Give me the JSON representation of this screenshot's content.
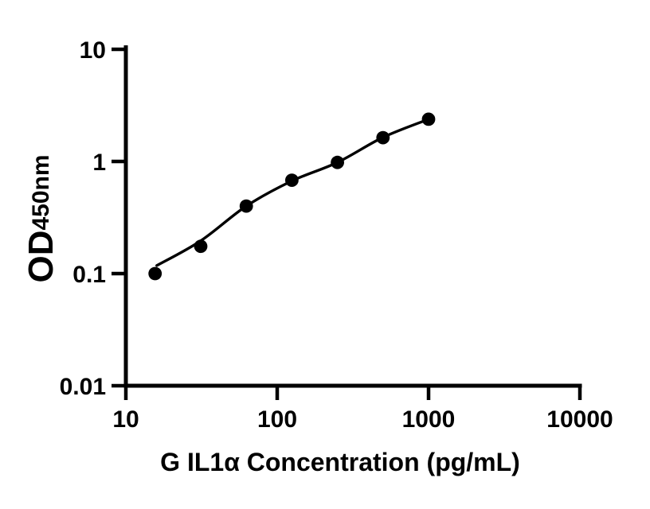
{
  "figure": {
    "background": "#ffffff",
    "axis_color": "#000000",
    "marker_color": "#000000"
  },
  "chart_data": {
    "type": "scatter",
    "title": "",
    "xlabel": "G IL1α Concentration (pg/mL)",
    "ylabel": "OD",
    "ylabel_subscript": "450nm",
    "x_scale": "log",
    "y_scale": "log",
    "xlim": [
      10,
      10000
    ],
    "ylim": [
      0.01,
      10
    ],
    "x_ticks": [
      10,
      100,
      1000,
      10000
    ],
    "x_tick_labels": [
      "10",
      "100",
      "1000",
      "10000"
    ],
    "y_ticks": [
      0.01,
      0.1,
      1,
      10
    ],
    "y_tick_labels": [
      "0.01",
      "0.1",
      "1",
      "10"
    ],
    "grid": false,
    "legend": "none",
    "series": [
      {
        "name": "standard-points",
        "type": "scatter",
        "marker": "filled-circle",
        "color": "#000000",
        "x": [
          15.6,
          31.25,
          62.5,
          125,
          250,
          500,
          1000
        ],
        "y": [
          0.1,
          0.175,
          0.4,
          0.68,
          0.98,
          1.63,
          2.38
        ]
      },
      {
        "name": "fit-curve",
        "type": "line",
        "color": "#000000",
        "x": [
          16,
          31.25,
          62.5,
          125,
          250,
          500,
          1000
        ],
        "y": [
          0.118,
          0.196,
          0.4,
          0.67,
          0.98,
          1.64,
          2.38
        ]
      }
    ]
  }
}
